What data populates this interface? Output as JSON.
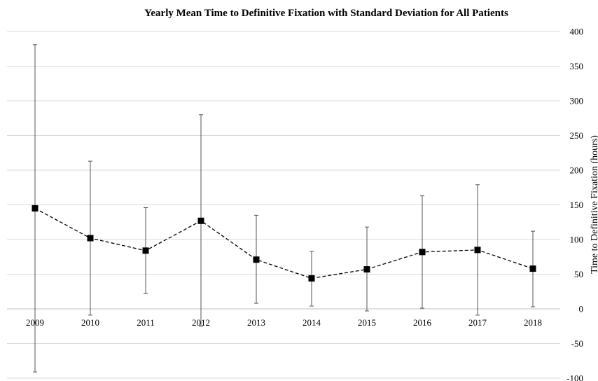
{
  "chart_data": {
    "type": "line",
    "title": "Yearly Mean Time to Definitive Fixation with Standard Deviation for All Patients",
    "xlabel": "",
    "ylabel": "Time to Definitive Fixation (hours)",
    "ylim": [
      -100,
      400
    ],
    "yticks": [
      -100,
      -50,
      0,
      50,
      100,
      150,
      200,
      250,
      300,
      350,
      400
    ],
    "y_axis_side": "right",
    "grid": true,
    "legend": "none",
    "categories": [
      "2009",
      "2010",
      "2011",
      "2012",
      "2013",
      "2014",
      "2015",
      "2016",
      "2017",
      "2018"
    ],
    "series": [
      {
        "values": [
          145,
          102,
          84,
          127,
          71,
          44,
          57,
          82,
          85,
          58
        ],
        "error_low": [
          -91,
          -9,
          22,
          -25,
          8,
          4,
          -3,
          1,
          -9,
          3
        ],
        "error_high": [
          381,
          213,
          146,
          280,
          135,
          83,
          118,
          163,
          179,
          112
        ],
        "line_style": "dashed",
        "marker": "square",
        "color": "#000000"
      }
    ]
  }
}
